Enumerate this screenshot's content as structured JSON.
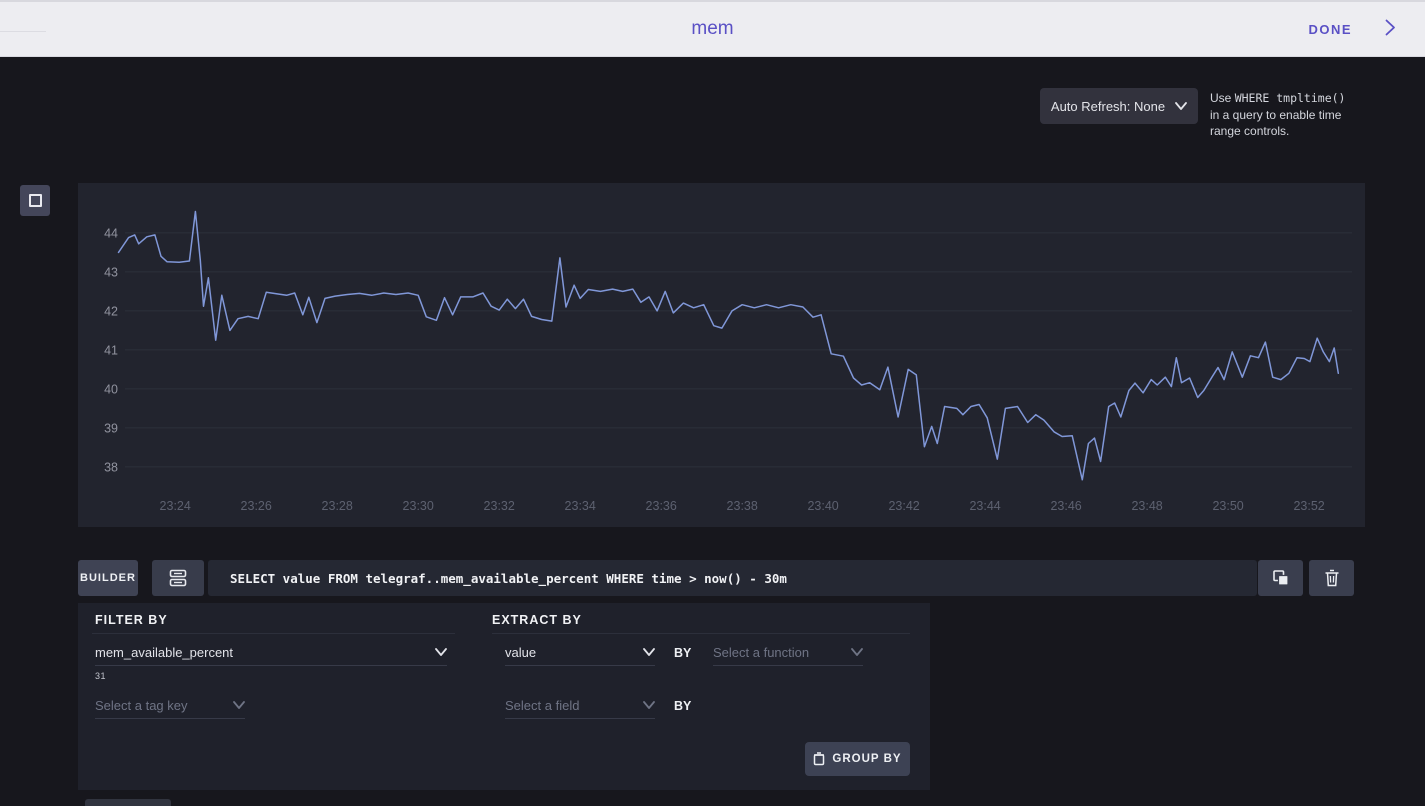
{
  "header": {
    "title": "mem",
    "done_label": "DONE"
  },
  "toolbar": {
    "auto_refresh_label": "Auto Refresh: None",
    "note_prefix": "Use ",
    "note_code": "WHERE tmpltime()",
    "note_line2": "in a query to enable time",
    "note_line3": "range controls."
  },
  "query_bar": {
    "builder_label": "BUILDER",
    "query_text": "SELECT value FROM telegraf..mem_available_percent WHERE time > now() - 30m"
  },
  "builder": {
    "filter": {
      "heading": "FILTER BY",
      "measurement_value": "mem_available_percent",
      "count": "31",
      "tag_placeholder": "Select a tag key"
    },
    "extract": {
      "heading": "EXTRACT BY",
      "field_value": "value",
      "by1": "BY",
      "function_placeholder": "Select a function",
      "field_placeholder": "Select a field",
      "by2": "BY"
    },
    "group_by_label": "GROUP BY"
  },
  "chart_data": {
    "type": "line",
    "title": "",
    "xlabel": "",
    "ylabel": "",
    "x_domain": [
      21.6,
      53.38
    ],
    "y_domain": [
      36.46,
      45.28
    ],
    "y_ticks": [
      38,
      39,
      40,
      41,
      42,
      43,
      44
    ],
    "x_ticks": [
      {
        "t": 24,
        "label": "23:24"
      },
      {
        "t": 26,
        "label": "23:26"
      },
      {
        "t": 28,
        "label": "23:28"
      },
      {
        "t": 30,
        "label": "23:30"
      },
      {
        "t": 32,
        "label": "23:32"
      },
      {
        "t": 34,
        "label": "23:34"
      },
      {
        "t": 36,
        "label": "23:36"
      },
      {
        "t": 38,
        "label": "23:38"
      },
      {
        "t": 40,
        "label": "23:40"
      },
      {
        "t": 42,
        "label": "23:42"
      },
      {
        "t": 44,
        "label": "23:44"
      },
      {
        "t": 46,
        "label": "23:46"
      },
      {
        "t": 48,
        "label": "23:48"
      },
      {
        "t": 50,
        "label": "23:50"
      },
      {
        "t": 52,
        "label": "23:52"
      }
    ],
    "grid_color": "#2d303b",
    "y_label_color": "#91939f",
    "x_label_color": "#5d6170",
    "series": [
      {
        "name": "telegraf..mem_available_percent",
        "color": "#8097d8",
        "points": [
          [
            22.6,
            43.5
          ],
          [
            22.85,
            43.88
          ],
          [
            23.0,
            43.95
          ],
          [
            23.1,
            43.72
          ],
          [
            23.3,
            43.9
          ],
          [
            23.5,
            43.95
          ],
          [
            23.65,
            43.4
          ],
          [
            23.8,
            43.26
          ],
          [
            24.1,
            43.25
          ],
          [
            24.35,
            43.28
          ],
          [
            24.5,
            44.55
          ],
          [
            24.62,
            43.3
          ],
          [
            24.7,
            42.12
          ],
          [
            24.82,
            42.85
          ],
          [
            25.0,
            41.25
          ],
          [
            25.15,
            42.4
          ],
          [
            25.35,
            41.5
          ],
          [
            25.55,
            41.8
          ],
          [
            25.8,
            41.86
          ],
          [
            26.05,
            41.8
          ],
          [
            26.25,
            42.48
          ],
          [
            26.5,
            42.44
          ],
          [
            26.75,
            42.4
          ],
          [
            26.95,
            42.46
          ],
          [
            27.15,
            41.9
          ],
          [
            27.3,
            42.35
          ],
          [
            27.5,
            41.7
          ],
          [
            27.7,
            42.32
          ],
          [
            27.95,
            42.38
          ],
          [
            28.25,
            42.42
          ],
          [
            28.55,
            42.45
          ],
          [
            28.85,
            42.4
          ],
          [
            29.15,
            42.46
          ],
          [
            29.45,
            42.42
          ],
          [
            29.75,
            42.46
          ],
          [
            30.0,
            42.4
          ],
          [
            30.2,
            41.85
          ],
          [
            30.45,
            41.76
          ],
          [
            30.65,
            42.34
          ],
          [
            30.85,
            41.9
          ],
          [
            31.05,
            42.36
          ],
          [
            31.35,
            42.36
          ],
          [
            31.6,
            42.46
          ],
          [
            31.8,
            42.12
          ],
          [
            32.0,
            42.02
          ],
          [
            32.2,
            42.3
          ],
          [
            32.4,
            42.06
          ],
          [
            32.6,
            42.3
          ],
          [
            32.8,
            41.86
          ],
          [
            33.05,
            41.78
          ],
          [
            33.3,
            41.74
          ],
          [
            33.5,
            43.36
          ],
          [
            33.65,
            42.1
          ],
          [
            33.85,
            42.66
          ],
          [
            34.0,
            42.32
          ],
          [
            34.2,
            42.55
          ],
          [
            34.5,
            42.5
          ],
          [
            34.8,
            42.56
          ],
          [
            35.05,
            42.5
          ],
          [
            35.3,
            42.56
          ],
          [
            35.5,
            42.22
          ],
          [
            35.7,
            42.36
          ],
          [
            35.9,
            42.0
          ],
          [
            36.1,
            42.5
          ],
          [
            36.3,
            41.95
          ],
          [
            36.55,
            42.2
          ],
          [
            36.8,
            42.08
          ],
          [
            37.05,
            42.16
          ],
          [
            37.3,
            41.62
          ],
          [
            37.5,
            41.56
          ],
          [
            37.75,
            42.0
          ],
          [
            38.0,
            42.16
          ],
          [
            38.3,
            42.08
          ],
          [
            38.6,
            42.16
          ],
          [
            38.9,
            42.08
          ],
          [
            39.2,
            42.16
          ],
          [
            39.5,
            42.1
          ],
          [
            39.75,
            41.84
          ],
          [
            39.95,
            41.9
          ],
          [
            40.2,
            40.9
          ],
          [
            40.5,
            40.84
          ],
          [
            40.75,
            40.28
          ],
          [
            40.95,
            40.1
          ],
          [
            41.15,
            40.16
          ],
          [
            41.4,
            39.98
          ],
          [
            41.6,
            40.56
          ],
          [
            41.85,
            39.28
          ],
          [
            42.1,
            40.5
          ],
          [
            42.3,
            40.36
          ],
          [
            42.5,
            38.52
          ],
          [
            42.68,
            39.04
          ],
          [
            42.82,
            38.6
          ],
          [
            43.0,
            39.55
          ],
          [
            43.3,
            39.5
          ],
          [
            43.45,
            39.34
          ],
          [
            43.65,
            39.55
          ],
          [
            43.85,
            39.6
          ],
          [
            44.05,
            39.26
          ],
          [
            44.3,
            38.2
          ],
          [
            44.5,
            39.5
          ],
          [
            44.8,
            39.55
          ],
          [
            45.05,
            39.14
          ],
          [
            45.25,
            39.34
          ],
          [
            45.45,
            39.2
          ],
          [
            45.7,
            38.9
          ],
          [
            45.9,
            38.78
          ],
          [
            46.15,
            38.8
          ],
          [
            46.4,
            37.67
          ],
          [
            46.55,
            38.6
          ],
          [
            46.7,
            38.74
          ],
          [
            46.85,
            38.14
          ],
          [
            47.05,
            39.55
          ],
          [
            47.2,
            39.64
          ],
          [
            47.35,
            39.28
          ],
          [
            47.55,
            39.96
          ],
          [
            47.7,
            40.15
          ],
          [
            47.9,
            39.9
          ],
          [
            48.1,
            40.24
          ],
          [
            48.25,
            40.1
          ],
          [
            48.45,
            40.3
          ],
          [
            48.6,
            40.06
          ],
          [
            48.72,
            40.8
          ],
          [
            48.85,
            40.16
          ],
          [
            49.05,
            40.28
          ],
          [
            49.25,
            39.78
          ],
          [
            49.4,
            39.96
          ],
          [
            49.6,
            40.3
          ],
          [
            49.75,
            40.55
          ],
          [
            49.9,
            40.24
          ],
          [
            50.1,
            40.95
          ],
          [
            50.35,
            40.3
          ],
          [
            50.55,
            40.85
          ],
          [
            50.75,
            40.8
          ],
          [
            50.92,
            41.2
          ],
          [
            51.1,
            40.3
          ],
          [
            51.3,
            40.24
          ],
          [
            51.5,
            40.4
          ],
          [
            51.7,
            40.8
          ],
          [
            51.88,
            40.78
          ],
          [
            52.02,
            40.7
          ],
          [
            52.2,
            41.3
          ],
          [
            52.35,
            40.95
          ],
          [
            52.5,
            40.7
          ],
          [
            52.62,
            41.05
          ],
          [
            52.72,
            40.4
          ]
        ]
      }
    ]
  }
}
